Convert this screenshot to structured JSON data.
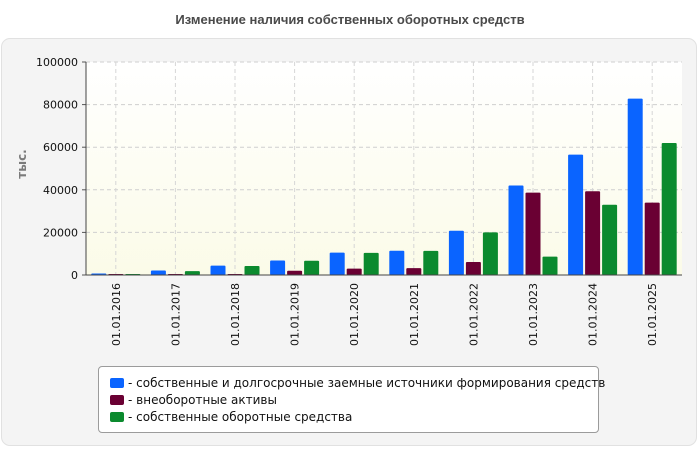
{
  "chart_data": {
    "type": "bar",
    "title": "Изменение наличия собственных оборотных средств",
    "xlabel": "",
    "ylabel": "тыс.",
    "ylim": [
      0,
      100000
    ],
    "yticks": [
      0,
      20000,
      40000,
      60000,
      80000,
      100000
    ],
    "grid": true,
    "legend_position": "bottom",
    "categories": [
      "01.01.2016",
      "01.01.2017",
      "01.01.2018",
      "01.01.2019",
      "01.01.2020",
      "01.01.2021",
      "01.01.2022",
      "01.01.2023",
      "01.01.2024",
      "01.01.2025"
    ],
    "series": [
      {
        "name": "собственные и долгосрочные заемные источники формирования средств",
        "label": "- собственные и долгосрочные заемные источники формирования средств",
        "color": "#0a64ff",
        "values": [
          700,
          2100,
          4400,
          6800,
          10500,
          11400,
          20800,
          42000,
          56500,
          82800
        ]
      },
      {
        "name": "внеоборотные активы",
        "label": "- внеоборотные активы",
        "color": "#6a0033",
        "values": [
          300,
          300,
          300,
          2000,
          3000,
          3200,
          6100,
          38700,
          39300,
          34000
        ]
      },
      {
        "name": "собственные оборотные средства",
        "label": "- собственные оборотные средства",
        "color": "#0b8a2e",
        "values": [
          400,
          1800,
          4200,
          6700,
          10400,
          11300,
          20000,
          8600,
          33000,
          62000
        ]
      }
    ]
  }
}
